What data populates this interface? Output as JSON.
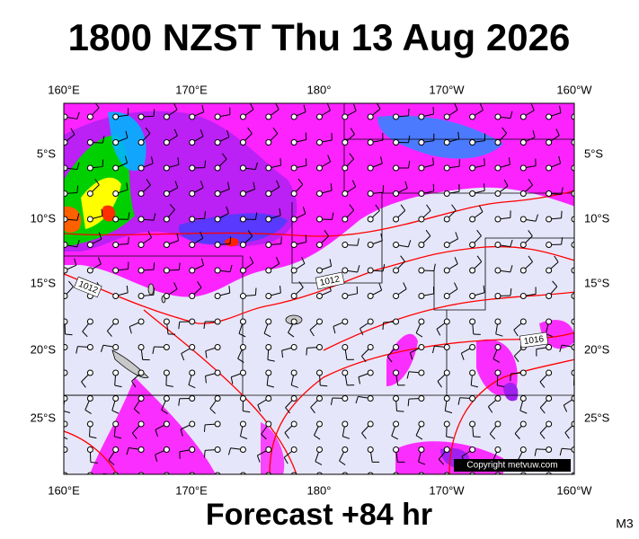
{
  "header": {
    "title": "1800 NZST Thu 13 Aug 2026"
  },
  "map": {
    "lon_labels": [
      "160°E",
      "170°E",
      "180°",
      "170°W",
      "160°W"
    ],
    "lat_labels": [
      "5°S",
      "10°S",
      "15°S",
      "20°S",
      "25°S"
    ],
    "isobar_labels": [
      "1012",
      "1012",
      "1016"
    ],
    "copyright": "Copyright metvuw.com"
  },
  "footer": {
    "forecast": "Forecast +84 hr",
    "code": "M3"
  }
}
